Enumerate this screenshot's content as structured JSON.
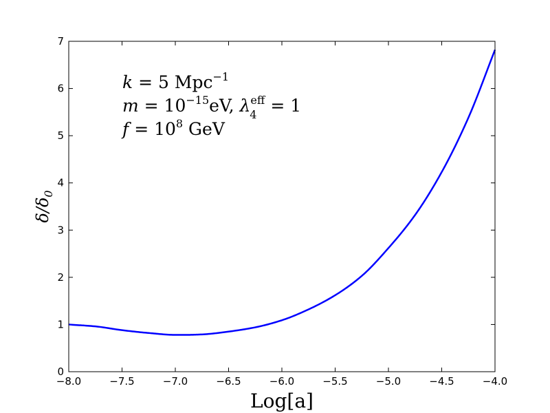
{
  "chart_data": {
    "type": "line",
    "xlabel": "Log[a]",
    "ylabel_main": "δ/δ",
    "ylabel_sub": "0",
    "xlim": [
      -8.0,
      -4.0
    ],
    "ylim": [
      0,
      7
    ],
    "x_ticks": [
      "−8.0",
      "−7.5",
      "−7.0",
      "−6.5",
      "−6.0",
      "−5.5",
      "−5.0",
      "−4.5",
      "−4.0"
    ],
    "y_ticks": [
      "0",
      "1",
      "2",
      "3",
      "4",
      "5",
      "6",
      "7"
    ],
    "grid": false,
    "series": [
      {
        "color": "#0000ff",
        "x": [
          -8.0,
          -7.75,
          -7.5,
          -7.25,
          -7.0,
          -6.9,
          -6.75,
          -6.5,
          -6.25,
          -6.0,
          -5.75,
          -5.5,
          -5.25,
          -5.0,
          -4.75,
          -4.5,
          -4.25,
          -4.0
        ],
        "y": [
          1.0,
          0.96,
          0.88,
          0.82,
          0.78,
          0.78,
          0.79,
          0.85,
          0.94,
          1.09,
          1.32,
          1.62,
          2.03,
          2.62,
          3.32,
          4.23,
          5.38,
          6.82
        ]
      }
    ],
    "annotations": {
      "line1": {
        "k": "k",
        "eq": " = 5 Mpc",
        "sup": "−1"
      },
      "line2": {
        "m": "m",
        "eq": " = 10",
        "sup": "−15",
        "unit": "eV, ",
        "lambda": "λ",
        "lambda_sup": "eff",
        "lambda_sub": "4",
        "eq2": " = 1"
      },
      "line3": {
        "f": "f",
        "eq": " = 10",
        "sup": "8",
        "unit": " GeV"
      }
    }
  }
}
